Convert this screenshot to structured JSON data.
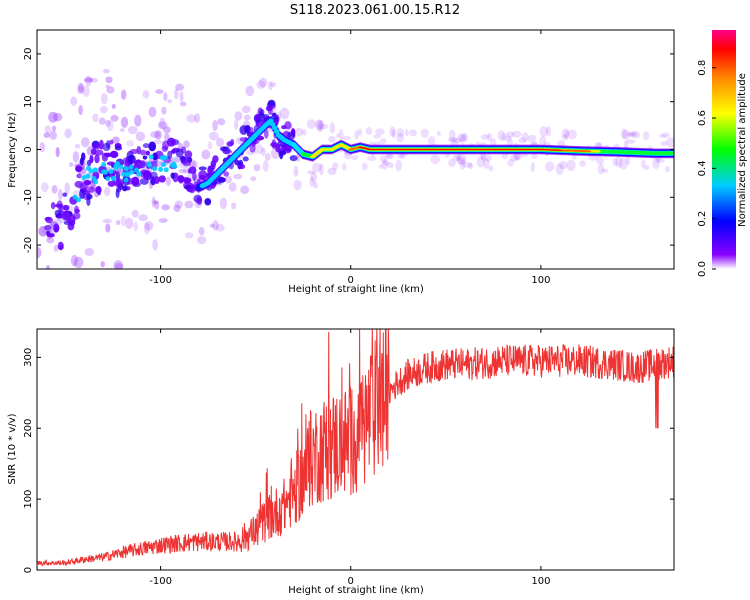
{
  "title": "S118.2023.061.00.15.R12",
  "chart_data": [
    {
      "type": "heatmap",
      "xlabel": "Height of straight line (km)",
      "ylabel": "Frequency (Hz)",
      "xlim": [
        -165,
        170
      ],
      "ylim": [
        -25,
        25
      ],
      "xticks": [
        -100,
        0,
        100
      ],
      "yticks": [
        -20,
        -10,
        0,
        10,
        20
      ],
      "colorbar": {
        "label": "Normalized spectral amplitude",
        "range": [
          0.0,
          0.95
        ],
        "ticks": [
          0.0,
          0.2,
          0.4,
          0.6,
          0.8
        ],
        "tick_labels": [
          "0.0",
          "0.2",
          "0.4",
          "0.6",
          "0.8"
        ],
        "colors": [
          "#ffffff",
          "#8800ff",
          "#0000ff",
          "#00ccff",
          "#00ff00",
          "#ffff00",
          "#ff8800",
          "#ff0000",
          "#ff0088"
        ]
      },
      "ridge": {
        "x": [
          -160,
          -150,
          -140,
          -130,
          -120,
          -110,
          -100,
          -90,
          -80,
          -75,
          -70,
          -65,
          -60,
          -55,
          -50,
          -45,
          -42,
          -38,
          -35,
          -30,
          -25,
          -20,
          -15,
          -10,
          -5,
          0,
          5,
          10,
          20,
          40,
          60,
          80,
          100,
          120,
          140,
          160,
          170
        ],
        "y": [
          -17,
          -14,
          -6,
          -4,
          -5,
          -3,
          -3,
          -2,
          -8,
          -7,
          -5,
          -3,
          -1,
          1,
          3,
          5,
          6,
          3,
          2,
          1,
          -1,
          -1.5,
          0,
          0,
          1,
          0,
          0.5,
          0,
          0,
          0,
          0,
          0,
          0,
          -0.3,
          -0.5,
          -0.8,
          -0.8
        ]
      }
    },
    {
      "type": "line",
      "xlabel": "Height of straight line (km)",
      "ylabel": "SNR (10 * v/v)",
      "xlim": [
        -165,
        170
      ],
      "ylim": [
        0,
        340
      ],
      "xticks": [
        -100,
        0,
        100
      ],
      "yticks": [
        0,
        100,
        200,
        300
      ],
      "series": [
        {
          "color": "#ee3333",
          "x": [
            -165,
            -150,
            -140,
            -130,
            -120,
            -110,
            -100,
            -90,
            -80,
            -70,
            -60,
            -50,
            -45,
            -40,
            -35,
            -30,
            -25,
            -20,
            -15,
            -10,
            -5,
            0,
            5,
            10,
            15,
            20,
            25,
            30,
            40,
            50,
            60,
            80,
            100,
            120,
            140,
            150,
            160,
            170
          ],
          "y": [
            10,
            10,
            15,
            18,
            25,
            30,
            35,
            38,
            40,
            40,
            40,
            55,
            70,
            80,
            90,
            110,
            130,
            160,
            170,
            175,
            180,
            180,
            200,
            215,
            235,
            250,
            265,
            275,
            285,
            290,
            290,
            295,
            295,
            295,
            290,
            285,
            290,
            295
          ]
        }
      ]
    }
  ]
}
